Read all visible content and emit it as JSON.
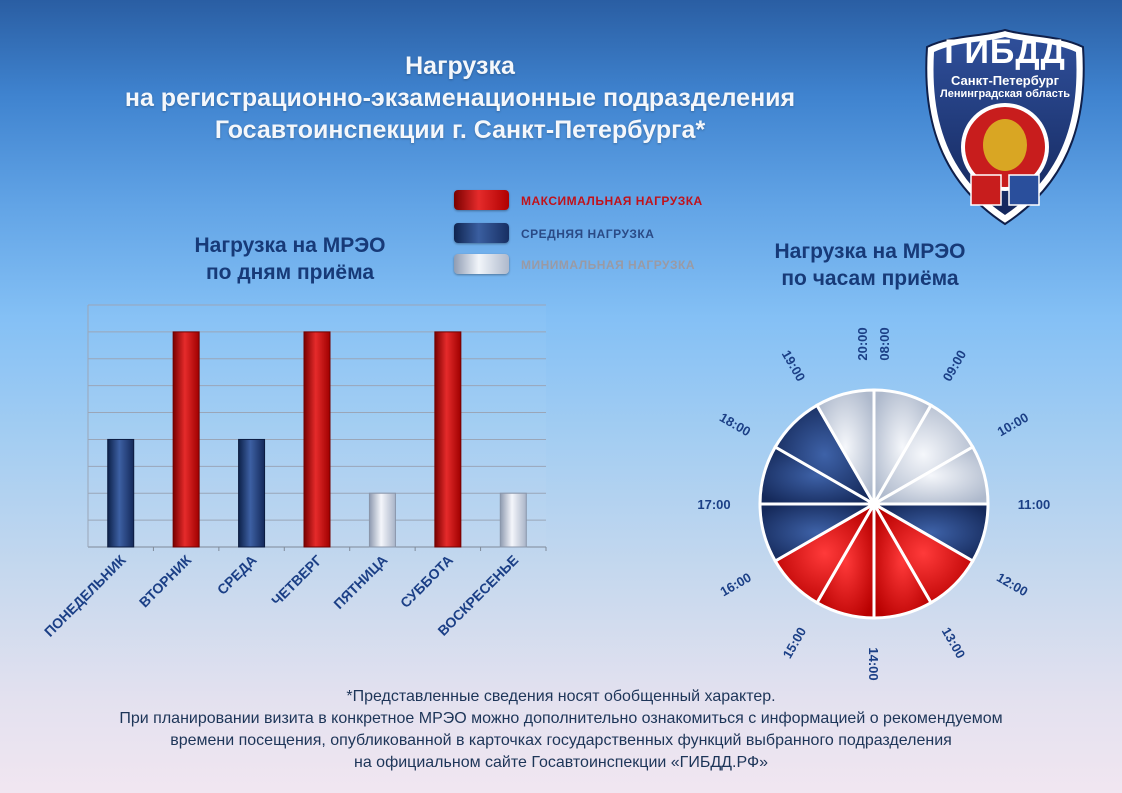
{
  "header": {
    "title_lines": [
      "Нагрузка",
      "на регистрационно-экзаменационные подразделения",
      "Госавтоинспекции г. Санкт-Петербурга*"
    ]
  },
  "emblem": {
    "name": "ГИБДД",
    "region_line1": "Санкт-Петербург",
    "region_line2": "Ленинградская область",
    "icon": "double-headed-eagle-icon"
  },
  "legend": {
    "items": [
      {
        "label": "МАКСИМАЛЬНАЯ  НАГРУЗКА",
        "level": "max",
        "text_color": "#c0121b"
      },
      {
        "label": "СРЕДНЯЯ НАГРУЗКА",
        "level": "mid",
        "text_color": "#2a4a86"
      },
      {
        "label": "МИНИМАЛЬНАЯ  НАГРУЗКА",
        "level": "min",
        "text_color": "#9a9aa4"
      }
    ]
  },
  "colors": {
    "max": "#cc1111",
    "mid": "#1f3a73",
    "min": "#c8d2e0"
  },
  "chart_data": [
    {
      "type": "bar",
      "title": "Нагрузка на МРЭО\nпо дням приёма",
      "title_lines": [
        "Нагрузка на МРЭО",
        "по дням приёма"
      ],
      "categories": [
        "ПОНЕДЕЛЬНИК",
        "ВТОРНИК",
        "СРЕДА",
        "ЧЕТВЕРГ",
        "ПЯТНИЦА",
        "СУББОТА",
        "ВОСКРЕСЕНЬЕ"
      ],
      "values": [
        4,
        8,
        4,
        8,
        2,
        8,
        2
      ],
      "levels": [
        "mid",
        "max",
        "mid",
        "max",
        "min",
        "max",
        "min"
      ],
      "ylim": [
        0,
        9
      ],
      "grid": true,
      "xlabel": "",
      "ylabel": ""
    },
    {
      "type": "pie",
      "title": "Нагрузка на МРЭО\nпо часам приёма",
      "title_lines": [
        "Нагрузка на МРЭО",
        "по часам приёма"
      ],
      "slices": [
        {
          "label": "08:00",
          "level": "min",
          "value": 1
        },
        {
          "label": "09:00",
          "level": "min",
          "value": 1
        },
        {
          "label": "10:00",
          "level": "min",
          "value": 1
        },
        {
          "label": "11:00",
          "level": "mid",
          "value": 1
        },
        {
          "label": "12:00",
          "level": "max",
          "value": 1
        },
        {
          "label": "13:00",
          "level": "max",
          "value": 1
        },
        {
          "label": "14:00",
          "level": "max",
          "value": 1
        },
        {
          "label": "15:00",
          "level": "max",
          "value": 1
        },
        {
          "label": "16:00",
          "level": "mid",
          "value": 1
        },
        {
          "label": "17:00",
          "level": "mid",
          "value": 1
        },
        {
          "label": "18:00",
          "level": "mid",
          "value": 1
        },
        {
          "label": "19:00",
          "level": "min",
          "value": 1
        }
      ],
      "extra_label": "20:00"
    }
  ],
  "footnote": {
    "lines": [
      "*Представленные сведения носят обобщенный характер.",
      "При планировании визита в конкретное МРЭО можно дополнительно ознакомиться с информацией о рекомендуемом",
      "времени посещения, опубликованной в карточках государственных функций выбранного подразделения",
      "на официальном сайте Госавтоинспекции «ГИБДД.РФ»"
    ]
  }
}
